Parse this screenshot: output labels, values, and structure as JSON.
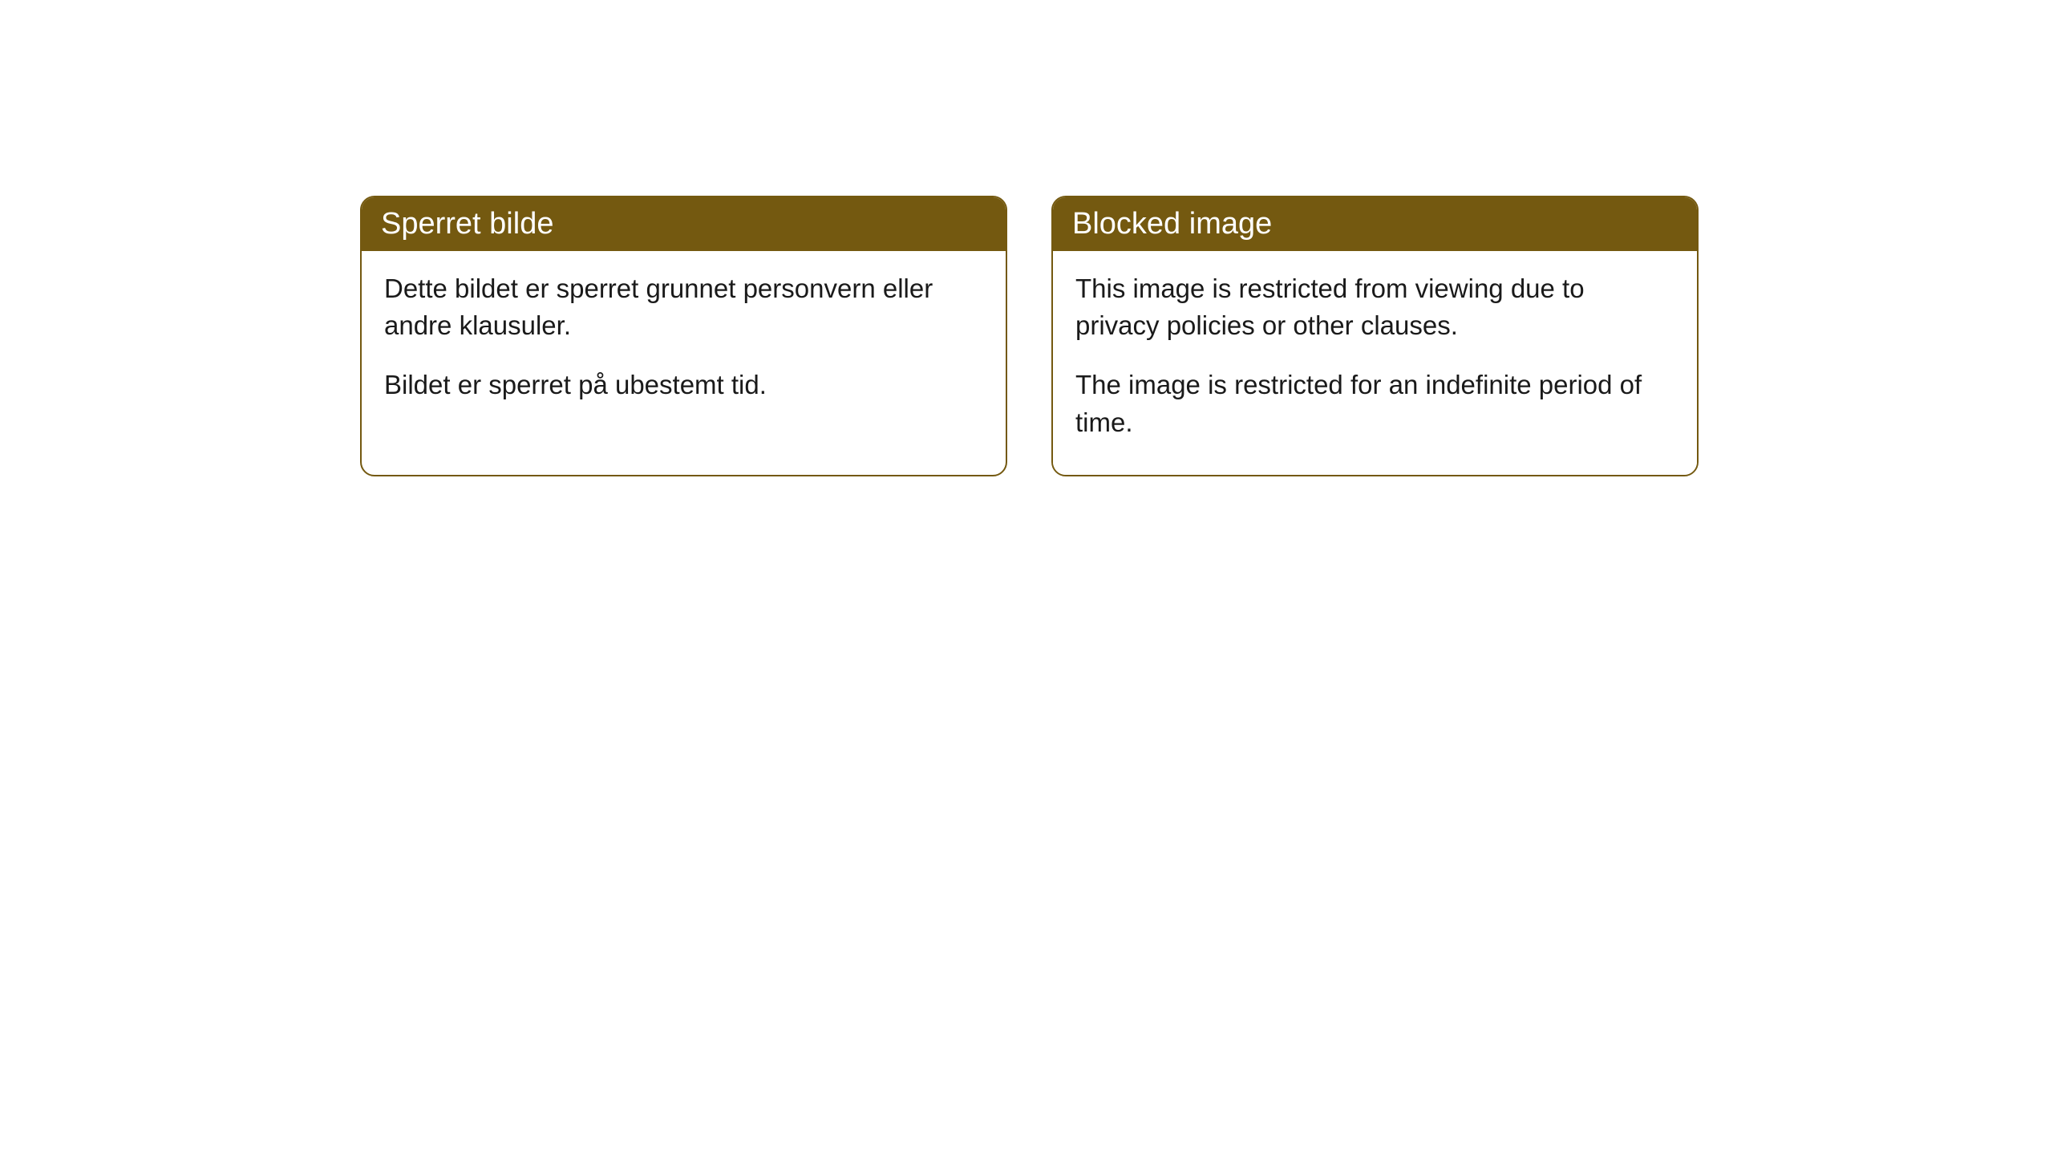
{
  "theme": {
    "header_bg": "#745910",
    "header_text": "#ffffff",
    "border_color": "#745910",
    "body_text": "#1a1a1a",
    "body_bg": "#ffffff"
  },
  "cards": [
    {
      "title": "Sperret bilde",
      "paragraph1": "Dette bildet er sperret grunnet personvern eller andre klausuler.",
      "paragraph2": "Bildet er sperret på ubestemt tid."
    },
    {
      "title": "Blocked image",
      "paragraph1": "This image is restricted from viewing due to privacy policies or other clauses.",
      "paragraph2": "The image is restricted for an indefinite period of time."
    }
  ]
}
